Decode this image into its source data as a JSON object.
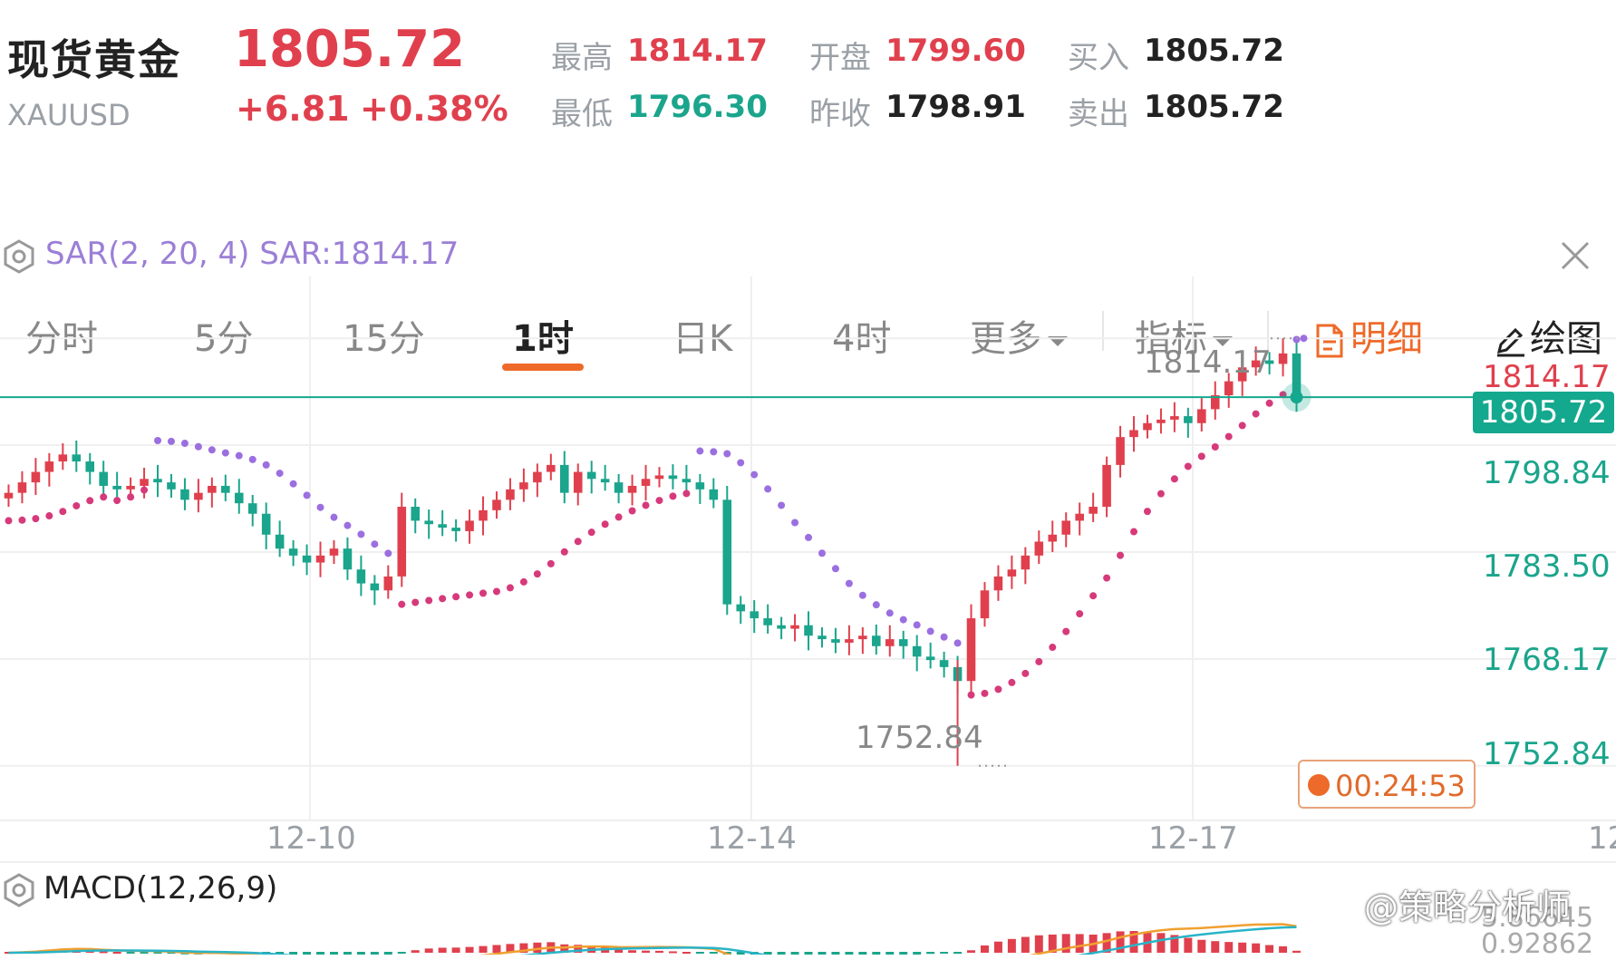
{
  "header": {
    "title": "现货黄金",
    "symbol": "XAUUSD",
    "price": "1805.72",
    "change": "+6.81",
    "change_pct": "+0.38%",
    "stats": {
      "high_label": "最高",
      "high": "1814.17",
      "low_label": "最低",
      "low": "1796.30",
      "open_label": "开盘",
      "open": "1799.60",
      "prev_close_label": "昨收",
      "prev_close": "1798.91",
      "bid_label": "买入",
      "bid": "1805.72",
      "ask_label": "卖出",
      "ask": "1805.72"
    }
  },
  "tabs": {
    "items": [
      "分时",
      "5分",
      "15分",
      "1时",
      "日K",
      "4时"
    ],
    "active": "1时",
    "more": "更多",
    "indicator": "指标",
    "detail": "明细",
    "draw": "绘图"
  },
  "indicator": {
    "label": "SAR(2, 20, 4) SAR:1814.17"
  },
  "price_chart": {
    "y_ticks": [
      "1814.17",
      "1798.84",
      "1783.50",
      "1768.17",
      "1752.84"
    ],
    "x_ticks": [
      "12-10",
      "12-14",
      "12-17",
      "12"
    ],
    "high_annotation": "1814.17",
    "low_annotation": "1752.84",
    "current_price": "1805.72",
    "countdown": "00:24:53"
  },
  "macd": {
    "label": "MACD(12,26,9)",
    "values": [
      "5.86645",
      "0.92862"
    ]
  },
  "watermark": "@策略分析师",
  "colors": {
    "up": "#e0404d",
    "down": "#1aa58c",
    "accent": "#ee6a2a",
    "sar_up": "#d63a7a",
    "sar_down": "#9b6fe0"
  },
  "chart_data": {
    "type": "candlestick",
    "title": "",
    "ylim": [
      1745,
      1822
    ],
    "y_ticks": [
      1814.17,
      1798.84,
      1783.5,
      1768.17,
      1752.84
    ],
    "x_ticks": [
      "12-10",
      "12-14",
      "12-17"
    ],
    "high": 1814.17,
    "low": 1752.84,
    "current": 1805.72,
    "close_series": [
      1792.0,
      1793.5,
      1795.0,
      1796.5,
      1797.5,
      1796.5,
      1795.0,
      1793.0,
      1792.5,
      1793.0,
      1794.0,
      1793.5,
      1792.5,
      1791.0,
      1792.0,
      1793.0,
      1792.0,
      1790.5,
      1789.0,
      1786.0,
      1784.0,
      1783.0,
      1782.0,
      1783.0,
      1784.0,
      1781.0,
      1779.0,
      1778.0,
      1780.0,
      1790.0,
      1788.0,
      1787.5,
      1787.0,
      1786.5,
      1788.0,
      1789.5,
      1791.0,
      1792.5,
      1793.5,
      1795.0,
      1796.0,
      1792.0,
      1795.0,
      1794.0,
      1793.5,
      1792.0,
      1793.0,
      1794.0,
      1794.5,
      1794.0,
      1793.5,
      1792.5,
      1791.0,
      1776.0,
      1775.0,
      1774.0,
      1773.0,
      1772.5,
      1773.0,
      1771.5,
      1771.0,
      1770.5,
      1771.0,
      1771.5,
      1770.0,
      1771.0,
      1770.0,
      1768.5,
      1768.0,
      1767.0,
      1765.0,
      1774.0,
      1778.0,
      1780.0,
      1781.0,
      1783.0,
      1785.0,
      1786.0,
      1788.0,
      1789.0,
      1790.0,
      1796.0,
      1800.0,
      1801.0,
      1802.0,
      1802.5,
      1803.0,
      1802.0,
      1804.0,
      1806.0,
      1808.0,
      1810.0,
      1811.0,
      1810.5,
      1812.0,
      1805.72
    ]
  }
}
